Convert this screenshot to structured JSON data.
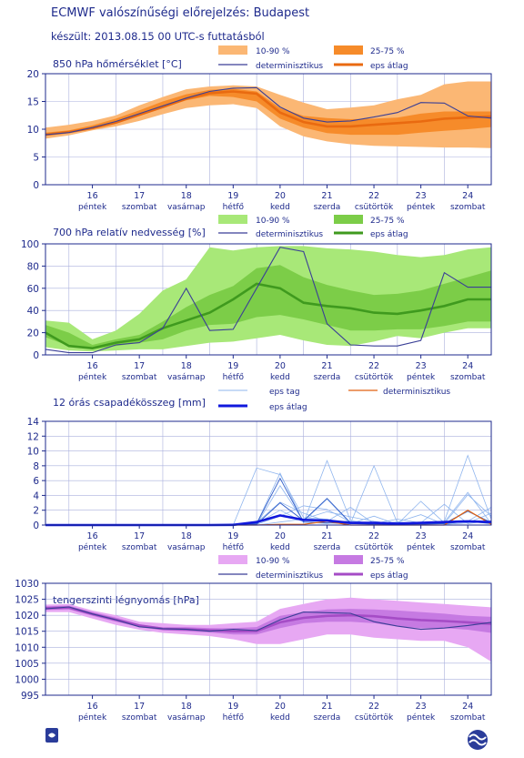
{
  "header": {
    "title": "ECMWF valószínűségi előrejelzés: Budapest",
    "subtitle": "készült: 2013.08.15 00 UTC-s futtatásból"
  },
  "colors": {
    "text": "#1e2a8c",
    "axis": "#1e2a8c",
    "grid": "#aab0dd",
    "temp_band_outer": "#fbb774",
    "temp_band_inner": "#f68b2a",
    "temp_mean": "#e96a10",
    "rh_band_outer": "#a8e878",
    "rh_band_inner": "#7ccd48",
    "rh_mean": "#3f9a1e",
    "precip_member": "#8fb5ee",
    "precip_mean": "#1018dd",
    "precip_det": "#e06010",
    "pres_band_outer": "#e7a8f3",
    "pres_band_inner": "#c67ae2",
    "pres_mean": "#a54cc6",
    "deterministic": "#3a3f96"
  },
  "x_days": [
    {
      "num": "16",
      "name": "péntek"
    },
    {
      "num": "17",
      "name": "szombat"
    },
    {
      "num": "18",
      "name": "vasárnap"
    },
    {
      "num": "19",
      "name": "hétfő"
    },
    {
      "num": "20",
      "name": "kedd"
    },
    {
      "num": "21",
      "name": "szerda"
    },
    {
      "num": "22",
      "name": "csütörtök"
    },
    {
      "num": "23",
      "name": "péntek"
    },
    {
      "num": "24",
      "name": "szombat"
    }
  ],
  "legend_labels": {
    "band_outer": "10-90 %",
    "band_inner": "25-75 %",
    "deterministic": "determinisztikus",
    "mean": "eps átlag",
    "members": "eps tag"
  },
  "chart_data": [
    {
      "id": "temperature",
      "type": "area",
      "title": "850 hPa hőmérséklet [°C]",
      "ylim": [
        0,
        20
      ],
      "yticks": [
        0,
        5,
        10,
        15,
        20
      ],
      "grid": true,
      "legend": "top-right",
      "x": [
        0,
        0.5,
        1,
        1.5,
        2,
        2.5,
        3,
        3.5,
        4,
        4.5,
        5,
        5.5,
        6,
        6.5,
        7,
        7.5,
        8,
        8.5,
        9,
        9.5
      ],
      "p10": [
        8.3,
        8.9,
        9.8,
        10.5,
        11.5,
        12.7,
        13.8,
        14.3,
        14.5,
        13.8,
        10.5,
        8.7,
        7.8,
        7.3,
        7.0,
        6.9,
        6.8,
        6.7,
        6.7,
        6.6
      ],
      "p25": [
        8.9,
        9.4,
        10.1,
        11.1,
        12.4,
        13.8,
        15.2,
        16.0,
        15.8,
        15.0,
        11.9,
        10.3,
        9.3,
        9.0,
        9.0,
        9.0,
        9.4,
        9.7,
        10.0,
        10.4
      ],
      "p75": [
        9.4,
        9.8,
        10.7,
        11.9,
        13.4,
        15.0,
        16.3,
        17.1,
        17.3,
        16.8,
        13.8,
        12.4,
        12.0,
        11.8,
        11.9,
        12.1,
        12.8,
        13.2,
        13.2,
        13.2
      ],
      "p90": [
        10.3,
        10.8,
        11.5,
        12.5,
        14.3,
        15.8,
        17.2,
        17.7,
        17.9,
        17.7,
        16.2,
        14.8,
        13.6,
        13.9,
        14.3,
        15.4,
        16.2,
        18.1,
        18.6,
        18.6
      ],
      "mean": [
        9.0,
        9.5,
        10.2,
        11.2,
        12.6,
        14.0,
        15.5,
        16.5,
        16.8,
        16.4,
        13.0,
        11.3,
        10.5,
        10.5,
        10.8,
        11.1,
        11.4,
        11.9,
        12.1,
        12.3
      ],
      "deterministic": [
        9.0,
        9.4,
        10.3,
        11.4,
        12.8,
        14.2,
        15.6,
        16.8,
        17.4,
        17.5,
        14.0,
        12.0,
        11.3,
        11.5,
        12.2,
        13.0,
        14.8,
        14.7,
        12.4,
        12.0
      ]
    },
    {
      "id": "humidity",
      "type": "area",
      "title": "700 hPa relatív nedvesség [%]",
      "ylim": [
        0,
        100
      ],
      "yticks": [
        0,
        20,
        40,
        60,
        80,
        100
      ],
      "grid": true,
      "legend": "top-right",
      "x": [
        0,
        0.5,
        1,
        1.5,
        2,
        2.5,
        3,
        3.5,
        4,
        4.5,
        5,
        5.5,
        6,
        6.5,
        7,
        7.5,
        8,
        8.5,
        9,
        9.5
      ],
      "p10": [
        7,
        4,
        3,
        4,
        5,
        5,
        8,
        11,
        12,
        15,
        18,
        13,
        9,
        8,
        12,
        17,
        15,
        20,
        24,
        24
      ],
      "p25": [
        16,
        8,
        5,
        8,
        11,
        14,
        22,
        27,
        28,
        34,
        36,
        32,
        27,
        22,
        22,
        23,
        23,
        26,
        30,
        30
      ],
      "p75": [
        27,
        20,
        9,
        14,
        18,
        30,
        43,
        54,
        62,
        78,
        81,
        70,
        63,
        58,
        54,
        55,
        58,
        64,
        70,
        76
      ],
      "p90": [
        31,
        29,
        14,
        22,
        37,
        58,
        68,
        97,
        94,
        97,
        98,
        98,
        96,
        95,
        93,
        90,
        88,
        90,
        95,
        97
      ],
      "mean": [
        20,
        8,
        6,
        11,
        14,
        24,
        31,
        38,
        50,
        64,
        60,
        47,
        44,
        42,
        38,
        37,
        40,
        44,
        50,
        50
      ],
      "deterministic": [
        5,
        2,
        2,
        9,
        11,
        24,
        60,
        22,
        23,
        60,
        97,
        93,
        28,
        9,
        8,
        8,
        13,
        74,
        61,
        61
      ]
    },
    {
      "id": "precipitation",
      "type": "line",
      "title": "12 órás csapadékösszeg [mm]",
      "ylim": [
        0,
        14
      ],
      "yticks": [
        0,
        2,
        4,
        6,
        8,
        10,
        12,
        14
      ],
      "grid": true,
      "legend": "top-right",
      "x": [
        0,
        0.5,
        1,
        1.5,
        2,
        2.5,
        3,
        3.5,
        4,
        4.5,
        5,
        5.5,
        6,
        6.5,
        7,
        7.5,
        8,
        8.5,
        9,
        9.5
      ],
      "members": [
        [
          0,
          0,
          0,
          0,
          0,
          0,
          0,
          0,
          0,
          7.7,
          6.8,
          1.0,
          0.8,
          0.2,
          8.0,
          0.3,
          0.1,
          0.5,
          9.4,
          0.8
        ],
        [
          0,
          0,
          0,
          0,
          0,
          0,
          0,
          0,
          0,
          0.2,
          7.0,
          0.3,
          8.7,
          0.6,
          0.1,
          0.4,
          0.2,
          0.2,
          4.1,
          1.2
        ],
        [
          0,
          0,
          0,
          0,
          0,
          0,
          0,
          0,
          0,
          0.1,
          5.3,
          0.5,
          3.5,
          0.2,
          1.2,
          0.1,
          3.2,
          0.3,
          0.5,
          2.4
        ],
        [
          0,
          0,
          0,
          0,
          0,
          0,
          0,
          0,
          0,
          0.3,
          3.1,
          1.6,
          0.5,
          2.4,
          0.2,
          0.8,
          0.3,
          2.8,
          0.2,
          0.6
        ],
        [
          0,
          0,
          0,
          0,
          0,
          0,
          0,
          0,
          0,
          0.1,
          1.2,
          2.6,
          2.1,
          0.4,
          0.3,
          0.2,
          0.1,
          0.4,
          4.4,
          0.2
        ],
        [
          0,
          0,
          0,
          0,
          0,
          0,
          0,
          0,
          0,
          0,
          0.4,
          0.8,
          1.8,
          1.1,
          0.5,
          0.1,
          0.3,
          0.2,
          1.8,
          0.4
        ],
        [
          0,
          0,
          0,
          0,
          0,
          0,
          0,
          0,
          0,
          0.2,
          2.0,
          0.4,
          0.2,
          0.6,
          0.2,
          0.4,
          1.4,
          0.1,
          0.3,
          1.6
        ]
      ],
      "dark_members": [
        [
          0,
          0,
          0,
          0,
          0,
          0,
          0,
          0,
          0,
          0.2,
          6.3,
          0.4,
          0.3,
          0.2,
          0.1,
          0.1,
          0.1,
          0.2,
          0.5,
          0.2
        ],
        [
          0,
          0,
          0,
          0,
          0,
          0,
          0,
          0,
          0,
          0.1,
          3.0,
          0.6,
          3.6,
          0.3,
          0.1,
          0.2,
          0.2,
          0.2,
          1.9,
          0.3
        ]
      ],
      "mean": [
        0,
        0,
        0,
        0,
        0,
        0,
        0,
        0,
        0.02,
        0.4,
        1.3,
        0.7,
        0.6,
        0.3,
        0.3,
        0.2,
        0.3,
        0.4,
        0.5,
        0.4
      ],
      "deterministic": [
        0,
        0,
        0,
        0,
        0,
        0,
        0,
        0,
        0,
        0,
        0.1,
        0.1,
        0.5,
        0,
        0,
        0,
        0,
        0,
        2.0,
        0.1
      ]
    },
    {
      "id": "pressure",
      "type": "area",
      "title": "tengerszinti légnyomás [hPa]",
      "ylim": [
        995,
        1030
      ],
      "yticks": [
        995,
        1000,
        1005,
        1010,
        1015,
        1020,
        1025,
        1030
      ],
      "grid": true,
      "legend": "top-right",
      "x": [
        0,
        0.5,
        1,
        1.5,
        2,
        2.5,
        3,
        3.5,
        4,
        4.5,
        5,
        5.5,
        6,
        6.5,
        7,
        7.5,
        8,
        8.5,
        9,
        9.5
      ],
      "p10": [
        1021.0,
        1021.0,
        1019.0,
        1017.0,
        1015.5,
        1014.5,
        1014.0,
        1013.5,
        1012.5,
        1011.0,
        1011.0,
        1012.5,
        1014.0,
        1014.0,
        1013.0,
        1012.5,
        1012.0,
        1012.0,
        1010.0,
        1005.5
      ],
      "p25": [
        1021.7,
        1021.8,
        1019.8,
        1018.0,
        1016.3,
        1015.3,
        1015.0,
        1014.6,
        1014.0,
        1014.0,
        1016.0,
        1017.5,
        1018.0,
        1018.0,
        1017.5,
        1016.5,
        1016.0,
        1016.0,
        1015.5,
        1014.5
      ],
      "p75": [
        1022.8,
        1023.0,
        1021.0,
        1019.3,
        1017.2,
        1016.2,
        1016.3,
        1016.0,
        1016.0,
        1016.3,
        1019.8,
        1021.0,
        1021.8,
        1022.0,
        1021.8,
        1021.5,
        1021.0,
        1020.5,
        1019.8,
        1019.5
      ],
      "p90": [
        1023.3,
        1023.5,
        1021.5,
        1020.0,
        1018.0,
        1017.5,
        1017.0,
        1017.0,
        1017.5,
        1018.0,
        1022.0,
        1023.5,
        1025.0,
        1025.5,
        1025.0,
        1024.5,
        1024.0,
        1023.5,
        1023.0,
        1022.5
      ],
      "mean": [
        1022.2,
        1022.4,
        1020.4,
        1018.6,
        1016.8,
        1015.8,
        1015.6,
        1015.3,
        1015.0,
        1015.1,
        1017.8,
        1019.2,
        1019.8,
        1020.0,
        1019.7,
        1019.0,
        1018.5,
        1018.2,
        1017.8,
        1017.3
      ],
      "deterministic": [
        1022.0,
        1022.6,
        1020.4,
        1018.6,
        1016.4,
        1015.8,
        1015.6,
        1015.0,
        1015.6,
        1015.2,
        1018.6,
        1021.0,
        1020.8,
        1020.6,
        1018.0,
        1016.6,
        1015.6,
        1016.0,
        1016.8,
        1017.8
      ]
    }
  ]
}
